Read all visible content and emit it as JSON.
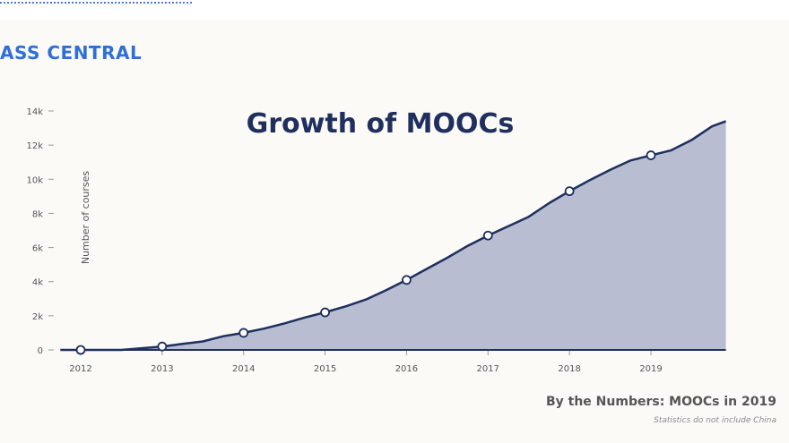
{
  "header": {
    "brand": "ASS CENTRAL"
  },
  "chart_data": {
    "type": "area",
    "title": "Growth of MOOCs",
    "xlabel": "",
    "ylabel": "Number of courses",
    "x_ticks": [
      "2012",
      "2013",
      "2014",
      "2015",
      "2016",
      "2017",
      "2018",
      "2019"
    ],
    "y_ticks": [
      {
        "value": 0,
        "label": "0"
      },
      {
        "value": 2000,
        "label": "2k"
      },
      {
        "value": 4000,
        "label": "4k"
      },
      {
        "value": 6000,
        "label": "6k"
      },
      {
        "value": 8000,
        "label": "8k"
      },
      {
        "value": 10000,
        "label": "10k"
      },
      {
        "value": 12000,
        "label": "12k"
      },
      {
        "value": 14000,
        "label": "14k"
      }
    ],
    "xlim": [
      2011.75,
      2019.92
    ],
    "ylim": [
      0,
      14000
    ],
    "grid": false,
    "fill_color": "#b4b9cf",
    "line_color": "#1f2f5e",
    "series": [
      {
        "values": [
          [
            2011.75,
            0
          ],
          [
            2012.0,
            0
          ],
          [
            2012.25,
            0
          ],
          [
            2012.5,
            0
          ],
          [
            2012.75,
            100
          ],
          [
            2013.0,
            200
          ],
          [
            2013.25,
            350
          ],
          [
            2013.5,
            500
          ],
          [
            2013.75,
            800
          ],
          [
            2014.0,
            1000
          ],
          [
            2014.25,
            1250
          ],
          [
            2014.5,
            1550
          ],
          [
            2014.75,
            1900
          ],
          [
            2015.0,
            2200
          ],
          [
            2015.25,
            2550
          ],
          [
            2015.5,
            2950
          ],
          [
            2015.75,
            3500
          ],
          [
            2016.0,
            4100
          ],
          [
            2016.25,
            4750
          ],
          [
            2016.5,
            5400
          ],
          [
            2016.75,
            6100
          ],
          [
            2017.0,
            6700
          ],
          [
            2017.25,
            7250
          ],
          [
            2017.5,
            7800
          ],
          [
            2017.75,
            8600
          ],
          [
            2018.0,
            9300
          ],
          [
            2018.25,
            9950
          ],
          [
            2018.5,
            10550
          ],
          [
            2018.75,
            11100
          ],
          [
            2019.0,
            11400
          ],
          [
            2019.25,
            11700
          ],
          [
            2019.5,
            12300
          ],
          [
            2019.75,
            13100
          ],
          [
            2019.92,
            13400
          ]
        ],
        "markers": [
          [
            2012.0,
            0
          ],
          [
            2013.0,
            200
          ],
          [
            2014.0,
            1000
          ],
          [
            2015.0,
            2200
          ],
          [
            2016.0,
            4100
          ],
          [
            2017.0,
            6700
          ],
          [
            2018.0,
            9300
          ],
          [
            2019.0,
            11400
          ]
        ]
      }
    ]
  },
  "footer": {
    "caption": "By the Numbers: MOOCs in 2019",
    "subcaption": "Statistics do not include China"
  }
}
